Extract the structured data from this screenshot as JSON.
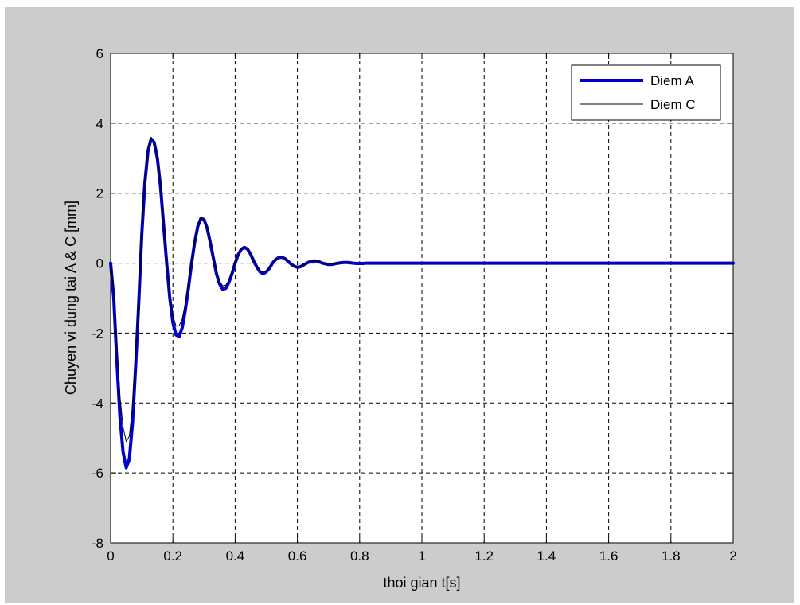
{
  "chart_data": {
    "type": "line",
    "title": "",
    "xlabel": "thoi gian t[s]",
    "ylabel": "Chuyen vi dung tai A & C [mm]",
    "xlim": [
      0,
      2
    ],
    "ylim": [
      -8,
      6
    ],
    "xticks": [
      0,
      0.2,
      0.4,
      0.6,
      0.8,
      1,
      1.2,
      1.4,
      1.6,
      1.8,
      2
    ],
    "xtick_labels": [
      "0",
      "0.2",
      "0.4",
      "0.6",
      "0.8",
      "1",
      "1.2",
      "1.4",
      "1.6",
      "1.8",
      "2"
    ],
    "yticks": [
      -8,
      -6,
      -4,
      -2,
      0,
      2,
      4,
      6
    ],
    "ytick_labels": [
      "-8",
      "-6",
      "-4",
      "-2",
      "0",
      "2",
      "4",
      "6"
    ],
    "grid": true,
    "legend": "top-right",
    "series": [
      {
        "name": "Diem A",
        "color": "#0000cc",
        "x": [
          0,
          0.01,
          0.02,
          0.03,
          0.04,
          0.05,
          0.06,
          0.07,
          0.08,
          0.09,
          0.1,
          0.11,
          0.12,
          0.13,
          0.14,
          0.15,
          0.16,
          0.17,
          0.18,
          0.19,
          0.2,
          0.21,
          0.22,
          0.23,
          0.24,
          0.25,
          0.26,
          0.27,
          0.28,
          0.29,
          0.3,
          0.31,
          0.32,
          0.33,
          0.34,
          0.35,
          0.36,
          0.37,
          0.38,
          0.39,
          0.4,
          0.41,
          0.42,
          0.43,
          0.44,
          0.45,
          0.46,
          0.47,
          0.48,
          0.49,
          0.5,
          0.51,
          0.52,
          0.53,
          0.54,
          0.55,
          0.56,
          0.57,
          0.58,
          0.59,
          0.6,
          0.61,
          0.62,
          0.63,
          0.64,
          0.65,
          0.66,
          0.67,
          0.68,
          0.69,
          0.7,
          0.71,
          0.72,
          0.73,
          0.74,
          0.75,
          0.76,
          0.77,
          0.78,
          0.79,
          0.8,
          0.81,
          0.82,
          0.83,
          0.84,
          0.85,
          0.86,
          0.87,
          0.88,
          0.89,
          0.9,
          0.91,
          0.92,
          0.93,
          0.94,
          0.95,
          0.96,
          0.97,
          0.98,
          0.99,
          1.0,
          1.02,
          1.2,
          1.4,
          1.6,
          1.8,
          2.0
        ],
        "y": [
          0,
          -1.0,
          -2.8,
          -4.4,
          -5.4,
          -5.85,
          -5.6,
          -4.6,
          -3.0,
          -1.2,
          0.8,
          2.3,
          3.2,
          3.55,
          3.45,
          3.0,
          2.2,
          1.1,
          0.0,
          -1.0,
          -1.7,
          -2.05,
          -2.1,
          -1.85,
          -1.35,
          -0.7,
          0.0,
          0.6,
          1.05,
          1.28,
          1.25,
          1.0,
          0.6,
          0.15,
          -0.3,
          -0.6,
          -0.75,
          -0.72,
          -0.55,
          -0.3,
          0.0,
          0.25,
          0.4,
          0.45,
          0.4,
          0.25,
          0.05,
          -0.12,
          -0.25,
          -0.3,
          -0.25,
          -0.15,
          0.0,
          0.1,
          0.16,
          0.17,
          0.13,
          0.05,
          -0.03,
          -0.09,
          -0.12,
          -0.1,
          -0.05,
          0.0,
          0.04,
          0.06,
          0.06,
          0.04,
          0.0,
          -0.02,
          -0.04,
          -0.04,
          -0.02,
          0.0,
          0.01,
          0.02,
          0.02,
          0.01,
          0.0,
          -0.01,
          -0.01,
          -0.01,
          0.0,
          0.0,
          0.0,
          0.0,
          0.0,
          0.0,
          0.0,
          0.0,
          0.0,
          0.0,
          0.0,
          0.0,
          0.0,
          0.0,
          0.0,
          0.0,
          0.0,
          0.0,
          0.0,
          0.0,
          0.0,
          0.0,
          0.0,
          0.0,
          0.0
        ]
      },
      {
        "name": "Diem C",
        "color": "#000000",
        "x": [
          0,
          0.01,
          0.02,
          0.03,
          0.04,
          0.05,
          0.06,
          0.07,
          0.08,
          0.09,
          0.1,
          0.11,
          0.12,
          0.13,
          0.14,
          0.15,
          0.16,
          0.17,
          0.18,
          0.19,
          0.2,
          0.21,
          0.22,
          0.23,
          0.24,
          0.25,
          0.26,
          0.27,
          0.28,
          0.29,
          0.3,
          0.31,
          0.32,
          0.33,
          0.34,
          0.35,
          0.36,
          0.37,
          0.38,
          0.39,
          0.4,
          0.41,
          0.42,
          0.43,
          0.44,
          0.45,
          0.46,
          0.47,
          0.48,
          0.49,
          0.5,
          0.51,
          0.52,
          0.53,
          0.54,
          0.55,
          0.56,
          0.57,
          0.58,
          0.59,
          0.6,
          0.61,
          0.62,
          0.63,
          0.64,
          0.65,
          0.66,
          0.67,
          0.68,
          0.69,
          0.7,
          0.72,
          0.74,
          0.76,
          0.78,
          0.8,
          0.85,
          0.9,
          1.0,
          1.2,
          1.4,
          1.6,
          1.8,
          2.0
        ],
        "y": [
          0,
          -0.8,
          -2.3,
          -3.8,
          -4.7,
          -5.1,
          -4.95,
          -4.1,
          -2.7,
          -1.0,
          0.9,
          2.4,
          3.3,
          3.6,
          3.5,
          3.05,
          2.25,
          1.15,
          0.05,
          -0.9,
          -1.5,
          -1.8,
          -1.8,
          -1.6,
          -1.15,
          -0.6,
          0.05,
          0.62,
          1.05,
          1.3,
          1.25,
          1.02,
          0.62,
          0.18,
          -0.25,
          -0.52,
          -0.65,
          -0.63,
          -0.48,
          -0.25,
          0.02,
          0.27,
          0.42,
          0.46,
          0.4,
          0.26,
          0.07,
          -0.1,
          -0.22,
          -0.27,
          -0.23,
          -0.13,
          0.0,
          0.1,
          0.16,
          0.17,
          0.13,
          0.06,
          -0.02,
          -0.08,
          -0.1,
          -0.09,
          -0.05,
          0.0,
          0.04,
          0.06,
          0.06,
          0.04,
          0.01,
          -0.02,
          -0.03,
          -0.02,
          0.0,
          0.01,
          0.01,
          0.0,
          0.0,
          0.0,
          0.0,
          0.0,
          0.0,
          0.0,
          0.0,
          0.0
        ]
      }
    ]
  }
}
